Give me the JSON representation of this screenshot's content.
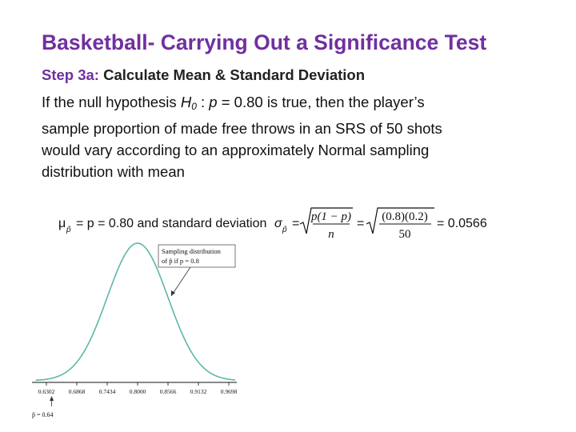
{
  "slide": {
    "title": "Basketball- Carrying Out a Significance Test",
    "step_label": "Step 3a:",
    "step_text": "Calculate Mean & Standard Deviation",
    "para": {
      "l1_a": "If the null hypothesis ",
      "h": "H",
      "h_sub": "0",
      "l1_b": " : ",
      "p": "p",
      "l1_c": " = 0.80 is true, then the player’s",
      "l2": "sample proportion of made free throws in an SRS of 50 shots",
      "l3": "would vary according to an approximately Normal sampling",
      "l4": "distribution with mean"
    }
  },
  "formula": {
    "mu": "μ",
    "p_hat": "p̂",
    "eq_mean": "= p = 0.80 and standard deviation",
    "sigma": "σ",
    "eq": "=",
    "num1": "p(1 − p)",
    "den1": "n",
    "num2": "(0.8)(0.2)",
    "den2": "50",
    "result": "= 0.0566"
  },
  "figure": {
    "callout_line1": "Sampling distribution",
    "callout_line2": "of p̂ if p = 0.8",
    "ticks": [
      "0.6302",
      "0.6868",
      "0.7434",
      "0.8000",
      "0.8566",
      "0.9132",
      "0.9698"
    ],
    "observed_label": "p̂ = 0.64",
    "chart_data": {
      "type": "line",
      "title": "",
      "xlabel": "",
      "ylabel": "",
      "mean": 0.8,
      "sd": 0.0566,
      "x_ticks": [
        0.6302,
        0.6868,
        0.7434,
        0.8,
        0.8566,
        0.9132,
        0.9698
      ],
      "xlim": [
        0.6302,
        0.9698
      ],
      "observed_value": 0.64,
      "grid": false
    }
  }
}
